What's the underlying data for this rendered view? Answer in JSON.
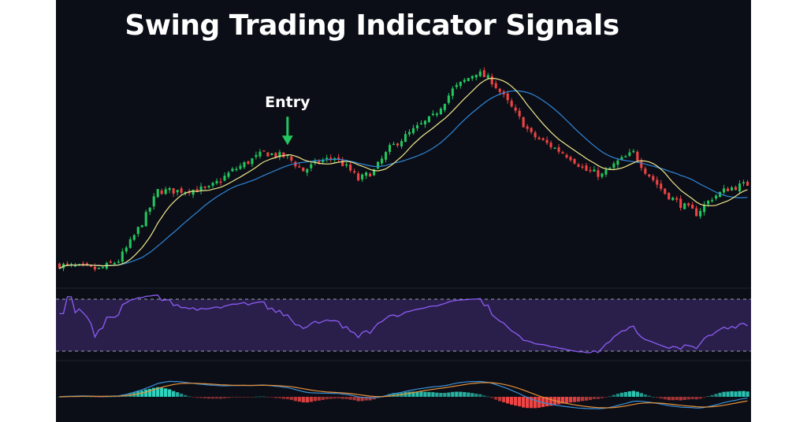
{
  "chart_data": {
    "type": "candlestick",
    "title": "Swing Trading Indicator Signals",
    "annotations": [
      {
        "text": "Entry",
        "candle_index": 58,
        "marker": "arrow-down",
        "color": "#22c55e"
      }
    ],
    "colors": {
      "background": "#0b0e16",
      "bullish": "#22c55e",
      "bearish": "#ef4444",
      "fast_ma": "#f0e68c",
      "slow_ma": "#2f86d8",
      "rsi_line": "#8b5cf6",
      "rsi_band": "#2a1f4a",
      "macd_line": "#3a8fd6",
      "signal_line": "#e6903a",
      "hist_positive": "#2dd4bf",
      "hist_negative": "#ef4444"
    },
    "price_keypoints": [
      [
        0,
        30
      ],
      [
        10,
        28
      ],
      [
        15,
        32
      ],
      [
        18,
        40
      ],
      [
        22,
        52
      ],
      [
        25,
        63
      ],
      [
        30,
        63
      ],
      [
        38,
        64
      ],
      [
        44,
        72
      ],
      [
        48,
        76
      ],
      [
        52,
        80
      ],
      [
        58,
        78
      ],
      [
        62,
        72
      ],
      [
        66,
        76
      ],
      [
        70,
        78
      ],
      [
        74,
        72
      ],
      [
        76,
        68
      ],
      [
        80,
        72
      ],
      [
        84,
        82
      ],
      [
        90,
        90
      ],
      [
        95,
        96
      ],
      [
        100,
        108
      ],
      [
        106,
        116
      ],
      [
        110,
        112
      ],
      [
        115,
        100
      ],
      [
        120,
        88
      ],
      [
        126,
        82
      ],
      [
        130,
        78
      ],
      [
        134,
        72
      ],
      [
        138,
        70
      ],
      [
        142,
        76
      ],
      [
        146,
        80
      ],
      [
        149,
        72
      ],
      [
        154,
        62
      ],
      [
        158,
        57
      ],
      [
        162,
        53
      ],
      [
        166,
        60
      ],
      [
        170,
        64
      ],
      [
        175,
        66
      ]
    ],
    "series": [
      {
        "name": "",
        "kind": "price_ohlc"
      },
      {
        "name": "",
        "kind": "fast_moving_average",
        "period": 10
      },
      {
        "name": "",
        "kind": "slow_moving_average",
        "period": 22
      }
    ],
    "rsi": {
      "upper_band": 70,
      "lower_band": 30,
      "ylim": [
        0,
        100
      ]
    },
    "macd": {
      "fast": 12,
      "slow": 26,
      "signal": 9
    },
    "price_ylim": [
      20,
      120
    ]
  }
}
